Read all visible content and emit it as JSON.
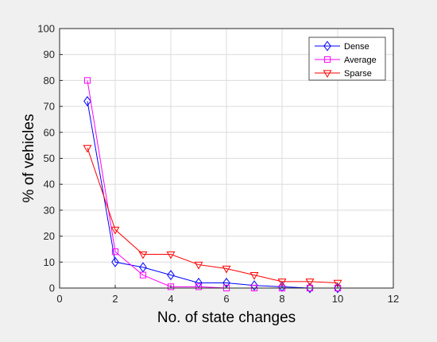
{
  "chart_data": {
    "type": "line",
    "title": "",
    "xlabel": "No. of state changes",
    "ylabel": "% of vehicles",
    "xlim": [
      0,
      12
    ],
    "ylim": [
      0,
      100
    ],
    "xticks": [
      0,
      2,
      4,
      6,
      8,
      10,
      12
    ],
    "yticks": [
      0,
      10,
      20,
      30,
      40,
      50,
      60,
      70,
      80,
      90,
      100
    ],
    "grid": true,
    "legend_position": "top-right",
    "series": [
      {
        "name": "Dense",
        "color": "#0000ff",
        "marker": "diamond",
        "x": [
          1,
          2,
          3,
          4,
          5,
          6,
          7,
          8,
          9,
          10
        ],
        "y": [
          72,
          10,
          8,
          5,
          2,
          2,
          1,
          0.5,
          0,
          0
        ]
      },
      {
        "name": "Average",
        "color": "#ff00ff",
        "marker": "square",
        "x": [
          1,
          2,
          3,
          4,
          5,
          6,
          7,
          8,
          9,
          10
        ],
        "y": [
          80,
          14,
          5,
          0.5,
          0.5,
          0,
          0,
          0,
          0,
          0
        ]
      },
      {
        "name": "Sparse",
        "color": "#ff0000",
        "marker": "triangle-down",
        "x": [
          1,
          2,
          3,
          4,
          5,
          6,
          7,
          8,
          9,
          10
        ],
        "y": [
          54,
          22.5,
          13,
          13,
          9,
          7.5,
          5,
          2.5,
          2.5,
          2
        ]
      }
    ]
  }
}
